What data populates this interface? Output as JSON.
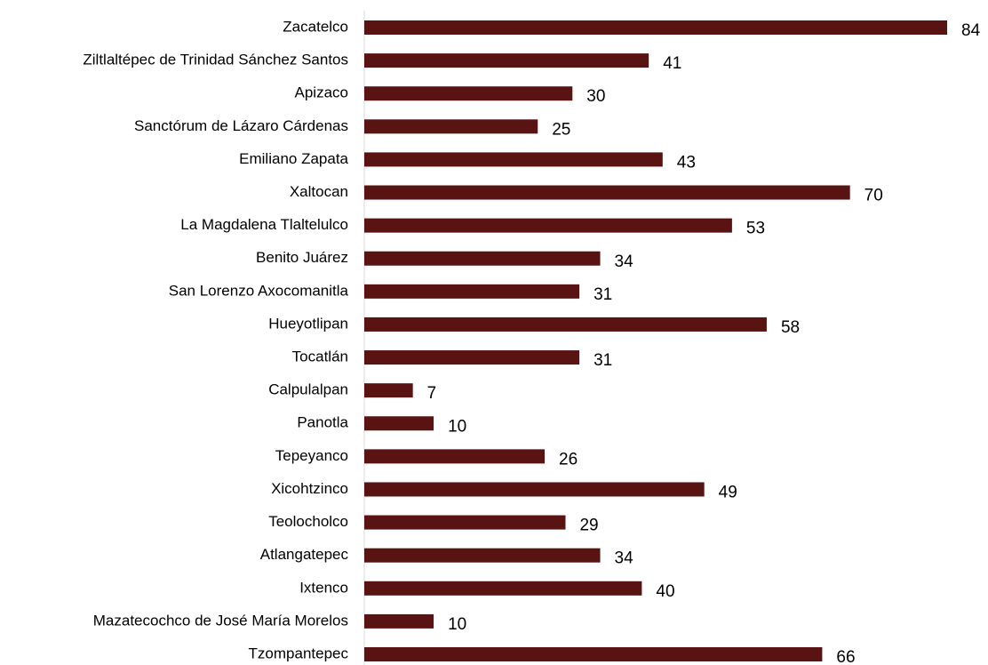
{
  "chart_data": {
    "type": "bar",
    "orientation": "horizontal",
    "categories": [
      "Zacatelco",
      "Ziltlaltépec de Trinidad Sánchez Santos",
      "Apizaco",
      "Sanctórum de Lázaro Cárdenas",
      "Emiliano Zapata",
      "Xaltocan",
      "La Magdalena Tlaltelulco",
      "Benito Juárez",
      "San Lorenzo Axocomanitla",
      "Hueyotlipan",
      "Tocatlán",
      "Calpulalpan",
      "Panotla",
      "Tepeyanco",
      "Xicohtzinco",
      "Teolocholco",
      "Atlangatepec",
      "Ixtenco",
      "Mazatecochco de José María Morelos",
      "Tzompantepec"
    ],
    "values": [
      84,
      41,
      30,
      25,
      43,
      70,
      53,
      34,
      31,
      58,
      31,
      7,
      10,
      26,
      49,
      29,
      34,
      40,
      10,
      66
    ],
    "color": "#5a1313"
  }
}
